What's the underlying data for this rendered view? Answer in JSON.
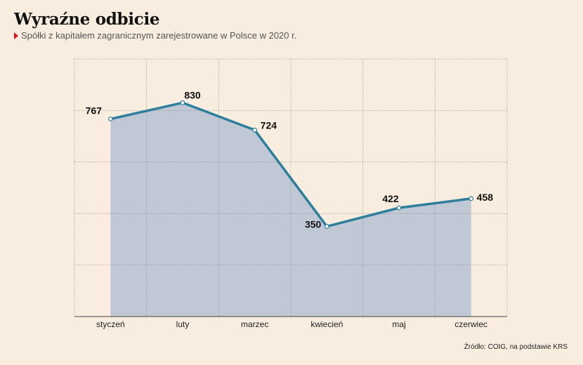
{
  "header": {
    "title": "Wyraźne odbicie",
    "subtitle": "Spółki z kapitałem zagranicznym zarejestrowane w Polsce w 2020 r."
  },
  "footer": {
    "source": "Źródło: COIG, na podstawie KRS"
  },
  "colors": {
    "line": "#2e7f9c",
    "area": "#c0c7d5",
    "marker": "#d21a1a",
    "background": "#f9ede0"
  },
  "chart_data": {
    "type": "area",
    "title": "Wyraźne odbicie",
    "subtitle": "Spółki z kapitałem zagranicznym zarejestrowane w Polsce w 2020 r.",
    "xlabel": "",
    "ylabel": "",
    "categories": [
      "styczeń",
      "luty",
      "marzec",
      "kwiecień",
      "maj",
      "czerwiec"
    ],
    "series": [
      {
        "values": [
          767,
          830,
          724,
          350,
          422,
          458
        ]
      }
    ],
    "ylim": [
      0,
      1000
    ],
    "grid": true,
    "legend": "none"
  }
}
